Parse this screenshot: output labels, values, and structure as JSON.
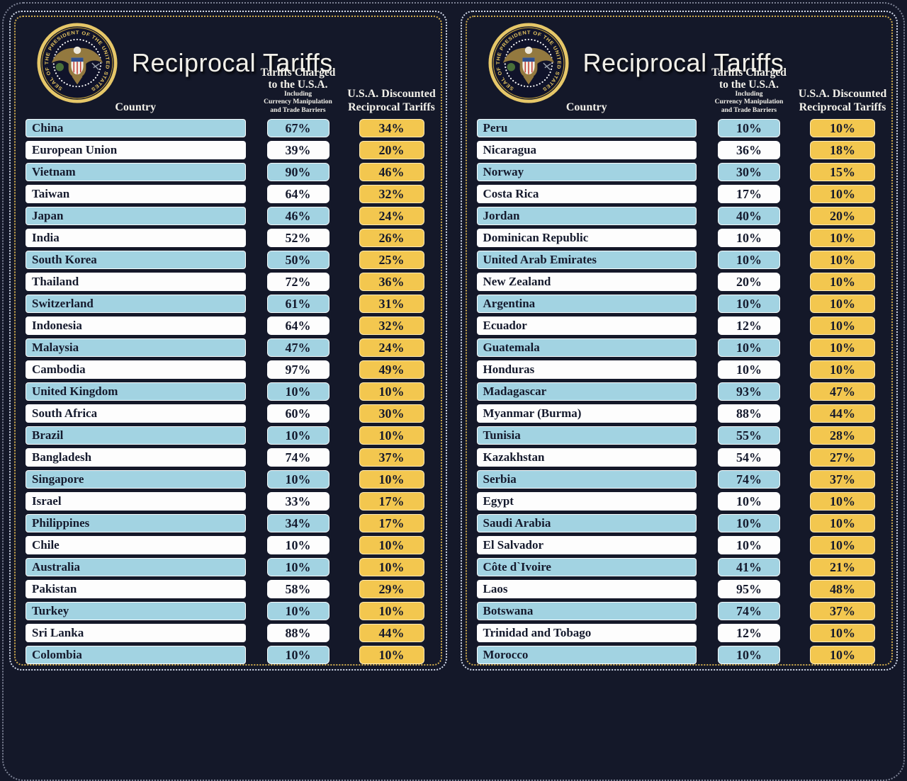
{
  "header": {
    "title": "Reciprocal Tariffs",
    "country_label": "Country",
    "charged_lines": [
      "Tariffs Charged",
      "to the U.S.A."
    ],
    "charged_sub_lines": [
      "Including",
      "Currency Manipulation",
      "and Trade Barriers"
    ],
    "discounted_lines": [
      "U.S.A. Discounted",
      "Reciprocal Tariffs"
    ],
    "seal_text": "SEAL OF THE PRESIDENT OF THE UNITED STATES"
  },
  "colors": {
    "background": "#141829",
    "bar_blue": "#a2d3e2",
    "bar_white": "#fdfdfd",
    "box_gold": "#f3c74f",
    "text_dark": "#151a2d",
    "text_light": "#f2f0e9",
    "frame_white": "#d3dbec",
    "frame_gold": "#d1ad4e",
    "seal_gold": "#e2c25f"
  },
  "chart_data": {
    "type": "table",
    "title": "Reciprocal Tariffs",
    "columns": [
      "Country",
      "Tariffs Charged to the U.S.A. Including Currency Manipulation and Trade Barriers",
      "U.S.A. Discounted Reciprocal Tariffs"
    ],
    "panels": [
      {
        "rows": [
          [
            "China",
            "67%",
            "34%"
          ],
          [
            "European Union",
            "39%",
            "20%"
          ],
          [
            "Vietnam",
            "90%",
            "46%"
          ],
          [
            "Taiwan",
            "64%",
            "32%"
          ],
          [
            "Japan",
            "46%",
            "24%"
          ],
          [
            "India",
            "52%",
            "26%"
          ],
          [
            "South Korea",
            "50%",
            "25%"
          ],
          [
            "Thailand",
            "72%",
            "36%"
          ],
          [
            "Switzerland",
            "61%",
            "31%"
          ],
          [
            "Indonesia",
            "64%",
            "32%"
          ],
          [
            "Malaysia",
            "47%",
            "24%"
          ],
          [
            "Cambodia",
            "97%",
            "49%"
          ],
          [
            "United Kingdom",
            "10%",
            "10%"
          ],
          [
            "South Africa",
            "60%",
            "30%"
          ],
          [
            "Brazil",
            "10%",
            "10%"
          ],
          [
            "Bangladesh",
            "74%",
            "37%"
          ],
          [
            "Singapore",
            "10%",
            "10%"
          ],
          [
            "Israel",
            "33%",
            "17%"
          ],
          [
            "Philippines",
            "34%",
            "17%"
          ],
          [
            "Chile",
            "10%",
            "10%"
          ],
          [
            "Australia",
            "10%",
            "10%"
          ],
          [
            "Pakistan",
            "58%",
            "29%"
          ],
          [
            "Turkey",
            "10%",
            "10%"
          ],
          [
            "Sri Lanka",
            "88%",
            "44%"
          ],
          [
            "Colombia",
            "10%",
            "10%"
          ]
        ]
      },
      {
        "rows": [
          [
            "Peru",
            "10%",
            "10%"
          ],
          [
            "Nicaragua",
            "36%",
            "18%"
          ],
          [
            "Norway",
            "30%",
            "15%"
          ],
          [
            "Costa Rica",
            "17%",
            "10%"
          ],
          [
            "Jordan",
            "40%",
            "20%"
          ],
          [
            "Dominican Republic",
            "10%",
            "10%"
          ],
          [
            "United Arab Emirates",
            "10%",
            "10%"
          ],
          [
            "New Zealand",
            "20%",
            "10%"
          ],
          [
            "Argentina",
            "10%",
            "10%"
          ],
          [
            "Ecuador",
            "12%",
            "10%"
          ],
          [
            "Guatemala",
            "10%",
            "10%"
          ],
          [
            "Honduras",
            "10%",
            "10%"
          ],
          [
            "Madagascar",
            "93%",
            "47%"
          ],
          [
            "Myanmar (Burma)",
            "88%",
            "44%"
          ],
          [
            "Tunisia",
            "55%",
            "28%"
          ],
          [
            "Kazakhstan",
            "54%",
            "27%"
          ],
          [
            "Serbia",
            "74%",
            "37%"
          ],
          [
            "Egypt",
            "10%",
            "10%"
          ],
          [
            "Saudi Arabia",
            "10%",
            "10%"
          ],
          [
            "El Salvador",
            "10%",
            "10%"
          ],
          [
            "Côte d`Ivoire",
            "41%",
            "21%"
          ],
          [
            "Laos",
            "95%",
            "48%"
          ],
          [
            "Botswana",
            "74%",
            "37%"
          ],
          [
            "Trinidad and Tobago",
            "12%",
            "10%"
          ],
          [
            "Morocco",
            "10%",
            "10%"
          ]
        ]
      }
    ]
  }
}
